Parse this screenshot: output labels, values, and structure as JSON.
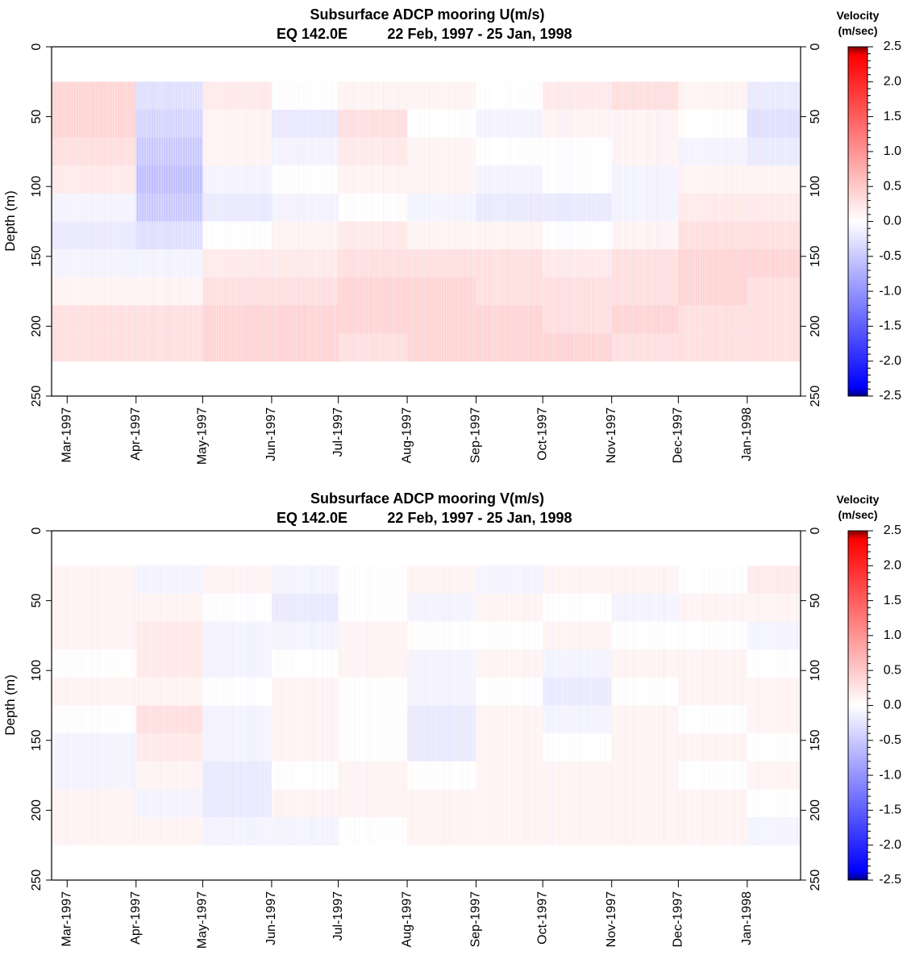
{
  "chart_data": [
    {
      "type": "heatmap",
      "title": "Subsurface ADCP mooring U(m/s)",
      "subtitle_location": "EQ 142.0E",
      "subtitle_dates": "22 Feb, 1997 - 25 Jan, 1998",
      "ylabel": "Depth (m)",
      "ylim": [
        250,
        0
      ],
      "yticks": [
        "0",
        "50",
        "100",
        "150",
        "200",
        "250"
      ],
      "ytick_values": [
        0,
        50,
        100,
        150,
        200,
        250
      ],
      "xlim": [
        "1997-02-22",
        "1998-01-25"
      ],
      "xticks": [
        "Mar-1997",
        "Apr-1997",
        "May-1997",
        "Jun-1997",
        "Jul-1997",
        "Aug-1997",
        "Sep-1997",
        "Oct-1997",
        "Nov-1997",
        "Dec-1997",
        "Jan-1998"
      ],
      "xtick_dates": [
        "1997-03-01",
        "1997-04-01",
        "1997-05-01",
        "1997-06-01",
        "1997-07-01",
        "1997-08-01",
        "1997-09-01",
        "1997-10-01",
        "1997-11-01",
        "1997-12-01",
        "1998-01-01"
      ],
      "data_depth_range": [
        25,
        225
      ],
      "colorbar_title_1": "Velocity",
      "colorbar_title_2": "(m/sec)",
      "colorbar_range": [
        -2.5,
        2.5
      ],
      "colorbar_ticks": [
        "2.5",
        "2.0",
        "1.5",
        "1.0",
        "0.5",
        "0.0",
        "-0.5",
        "-1.0",
        "-1.5",
        "-2.0",
        "-2.5"
      ],
      "colorbar_tick_values": [
        2.5,
        2.0,
        1.5,
        1.0,
        0.5,
        0.0,
        -0.5,
        -1.0,
        -1.5,
        -2.0,
        -2.5
      ],
      "colormap": [
        "#000080",
        "#0000ff",
        "#ffffff",
        "#ff0000",
        "#800000"
      ],
      "depths": [
        30,
        50,
        70,
        90,
        110,
        130,
        150,
        170,
        190,
        210
      ],
      "months": [
        "1997-03",
        "1997-04",
        "1997-05",
        "1997-06",
        "1997-07",
        "1997-08",
        "1997-09",
        "1997-10",
        "1997-11",
        "1997-12",
        "1998-01"
      ],
      "values": [
        [
          0.4,
          -0.3,
          0.2,
          0.0,
          0.1,
          0.1,
          0.0,
          0.2,
          0.3,
          0.1,
          -0.2
        ],
        [
          0.4,
          -0.4,
          0.1,
          -0.2,
          0.3,
          0.0,
          -0.1,
          0.1,
          0.1,
          0.0,
          -0.3
        ],
        [
          0.3,
          -0.5,
          0.1,
          -0.1,
          0.2,
          0.1,
          0.0,
          0.0,
          0.1,
          -0.1,
          -0.2
        ],
        [
          0.2,
          -0.6,
          -0.1,
          0.0,
          0.1,
          0.1,
          -0.1,
          0.0,
          -0.1,
          0.1,
          0.1
        ],
        [
          -0.1,
          -0.5,
          -0.2,
          -0.1,
          0.0,
          -0.1,
          -0.2,
          -0.2,
          -0.1,
          0.2,
          0.2
        ],
        [
          -0.2,
          -0.3,
          0.0,
          0.1,
          0.2,
          0.1,
          0.1,
          0.0,
          0.1,
          0.3,
          0.3
        ],
        [
          -0.1,
          -0.1,
          0.2,
          0.2,
          0.3,
          0.3,
          0.3,
          0.2,
          0.3,
          0.4,
          0.4
        ],
        [
          0.1,
          0.1,
          0.3,
          0.3,
          0.4,
          0.4,
          0.3,
          0.3,
          0.3,
          0.4,
          0.3
        ],
        [
          0.3,
          0.3,
          0.4,
          0.4,
          0.4,
          0.4,
          0.4,
          0.3,
          0.4,
          0.3,
          0.3
        ],
        [
          0.3,
          0.3,
          0.4,
          0.4,
          0.3,
          0.4,
          0.4,
          0.4,
          0.3,
          0.3,
          0.3
        ]
      ]
    },
    {
      "type": "heatmap",
      "title": "Subsurface ADCP mooring V(m/s)",
      "subtitle_location": "EQ 142.0E",
      "subtitle_dates": "22 Feb, 1997 - 25 Jan, 1998",
      "ylabel": "Depth (m)",
      "ylim": [
        250,
        0
      ],
      "yticks": [
        "0",
        "50",
        "100",
        "150",
        "200",
        "250"
      ],
      "ytick_values": [
        0,
        50,
        100,
        150,
        200,
        250
      ],
      "xlim": [
        "1997-02-22",
        "1998-01-25"
      ],
      "xticks": [
        "Mar-1997",
        "Apr-1997",
        "May-1997",
        "Jun-1997",
        "Jul-1997",
        "Aug-1997",
        "Sep-1997",
        "Oct-1997",
        "Nov-1997",
        "Dec-1997",
        "Jan-1998"
      ],
      "xtick_dates": [
        "1997-03-01",
        "1997-04-01",
        "1997-05-01",
        "1997-06-01",
        "1997-07-01",
        "1997-08-01",
        "1997-09-01",
        "1997-10-01",
        "1997-11-01",
        "1997-12-01",
        "1998-01-01"
      ],
      "data_depth_range": [
        25,
        225
      ],
      "colorbar_title_1": "Velocity",
      "colorbar_title_2": "(m/sec)",
      "colorbar_range": [
        -2.5,
        2.5
      ],
      "colorbar_ticks": [
        "2.5",
        "2.0",
        "1.5",
        "1.0",
        "0.5",
        "0.0",
        "-0.5",
        "-1.0",
        "-1.5",
        "-2.0",
        "-2.5"
      ],
      "colorbar_tick_values": [
        2.5,
        2.0,
        1.5,
        1.0,
        0.5,
        0.0,
        -0.5,
        -1.0,
        -1.5,
        -2.0,
        -2.5
      ],
      "colormap": [
        "#000080",
        "#0000ff",
        "#ffffff",
        "#ff0000",
        "#800000"
      ],
      "depths": [
        30,
        50,
        70,
        90,
        110,
        130,
        150,
        170,
        190,
        210
      ],
      "months": [
        "1997-03",
        "1997-04",
        "1997-05",
        "1997-06",
        "1997-07",
        "1997-08",
        "1997-09",
        "1997-10",
        "1997-11",
        "1997-12",
        "1998-01"
      ],
      "values": [
        [
          0.1,
          -0.1,
          0.1,
          -0.1,
          0.0,
          0.1,
          -0.1,
          0.1,
          0.1,
          0.0,
          0.2
        ],
        [
          0.1,
          0.1,
          0.0,
          -0.2,
          0.0,
          -0.1,
          0.1,
          0.0,
          -0.1,
          0.1,
          0.1
        ],
        [
          0.1,
          0.2,
          -0.1,
          -0.1,
          0.1,
          0.0,
          0.0,
          0.1,
          0.0,
          0.0,
          -0.1
        ],
        [
          0.0,
          0.2,
          -0.1,
          0.0,
          0.1,
          -0.1,
          0.1,
          -0.1,
          0.1,
          0.1,
          0.0
        ],
        [
          0.1,
          0.1,
          0.0,
          0.1,
          0.0,
          -0.1,
          0.0,
          -0.2,
          0.0,
          0.1,
          0.1
        ],
        [
          0.0,
          0.3,
          -0.1,
          0.1,
          0.0,
          -0.2,
          0.1,
          -0.1,
          0.1,
          0.0,
          0.1
        ],
        [
          -0.1,
          0.2,
          -0.1,
          0.1,
          0.0,
          -0.2,
          0.1,
          0.0,
          0.1,
          0.1,
          0.0
        ],
        [
          -0.1,
          0.1,
          -0.2,
          0.0,
          0.1,
          0.0,
          0.1,
          0.1,
          0.1,
          0.0,
          0.1
        ],
        [
          0.1,
          -0.1,
          -0.2,
          0.1,
          0.1,
          0.1,
          0.1,
          0.1,
          0.1,
          0.1,
          0.0
        ],
        [
          0.1,
          0.1,
          -0.1,
          -0.1,
          0.0,
          0.1,
          0.1,
          0.1,
          0.1,
          0.1,
          -0.1
        ]
      ]
    }
  ]
}
